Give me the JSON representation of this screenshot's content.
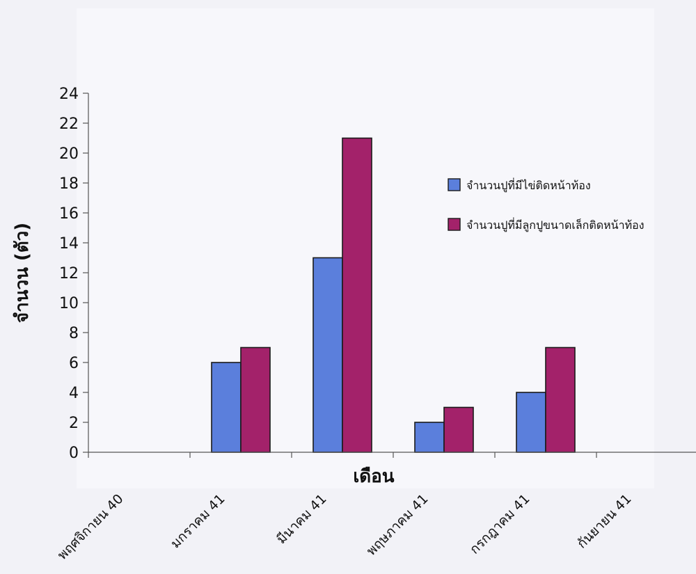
{
  "chart_data": {
    "type": "bar",
    "xlabel": "เดือน",
    "ylabel": "จำนวน (ตัว)",
    "ylim": [
      0,
      24
    ],
    "yticks": [
      0,
      2,
      4,
      6,
      8,
      10,
      12,
      14,
      16,
      18,
      20,
      22,
      24
    ],
    "categories": [
      "พฤศจิกายน 40",
      "มกราคม 41",
      "มีนาคม 41",
      "พฤษภาคม 41",
      "กรกฎาคม 41",
      "กันยายน 41"
    ],
    "series": [
      {
        "name": "จำนวนปูที่มีไข่ติดหน้าท้อง",
        "color": "#5b7fdc",
        "values": [
          0,
          6,
          13,
          2,
          4,
          0
        ]
      },
      {
        "name": "จำนวนปูที่มีลูกปูขนาดเล็กติดหน้าท้อง",
        "color": "#a3226a",
        "values": [
          0,
          7,
          21,
          3,
          7,
          0
        ]
      }
    ],
    "grid": false,
    "legend_position": "right"
  }
}
